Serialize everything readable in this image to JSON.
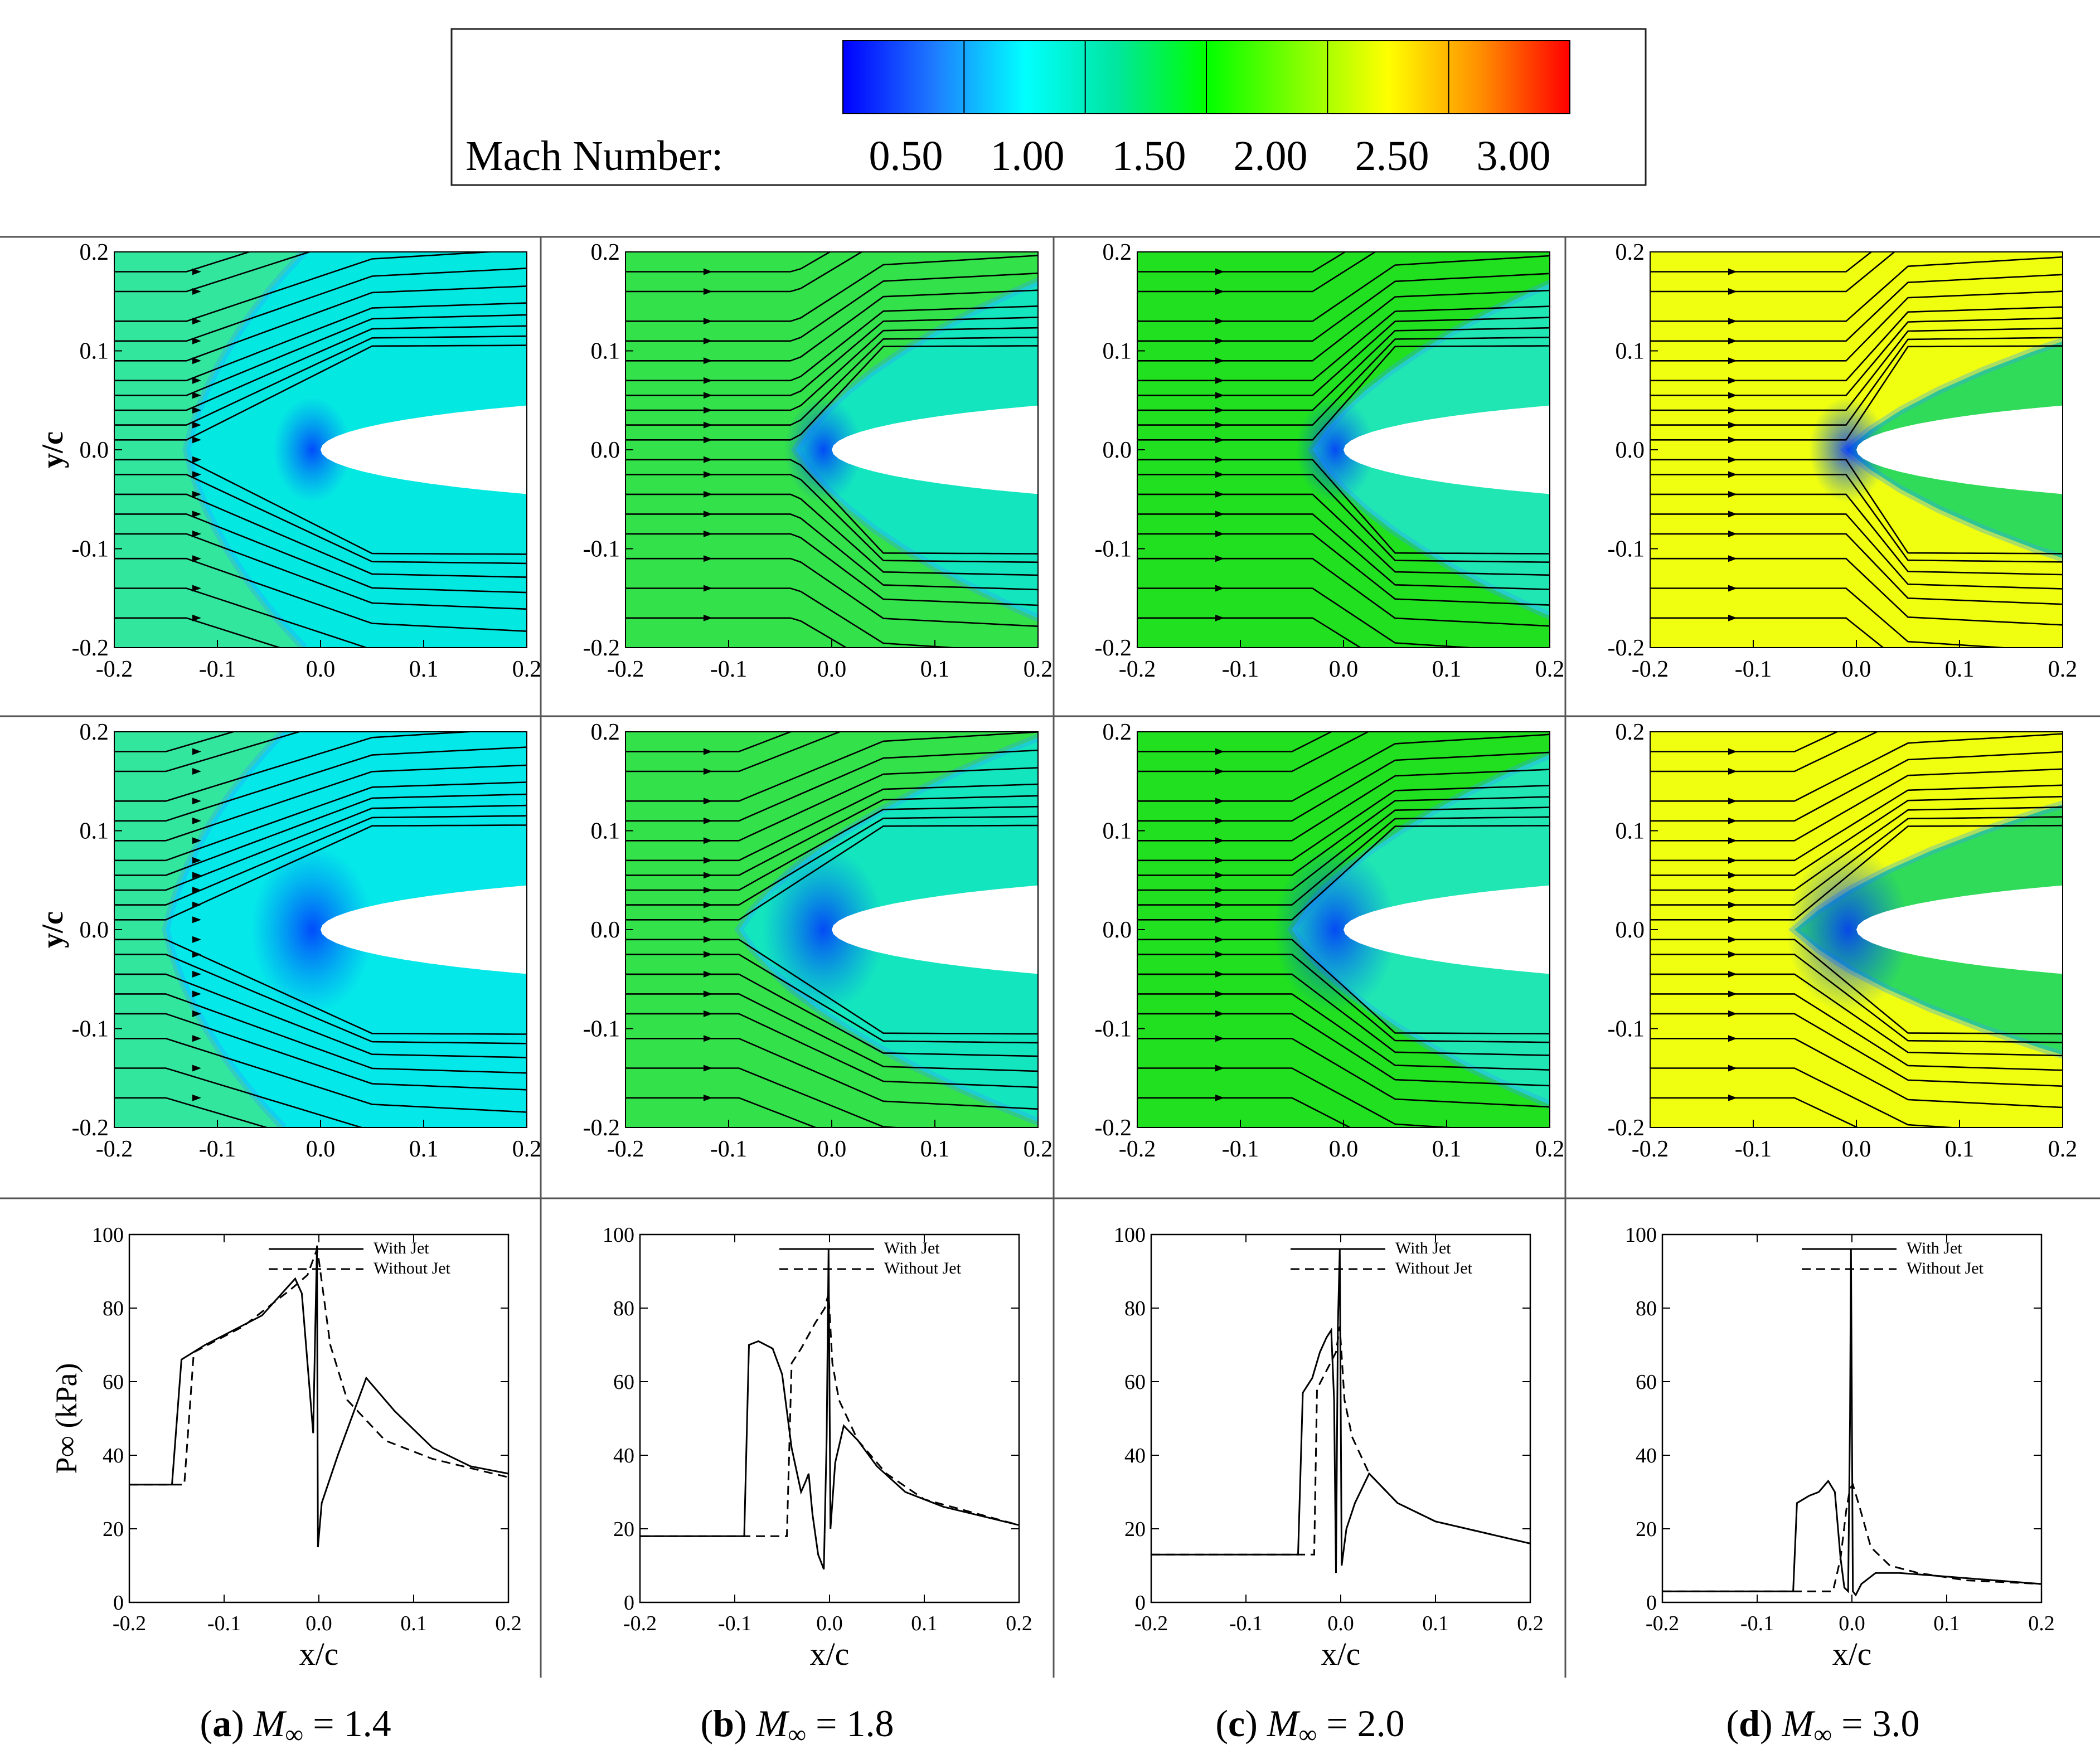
{
  "legend": {
    "label": "Mach Number:",
    "ticks": [
      "0.50",
      "1.00",
      "1.50",
      "2.00",
      "2.50",
      "3.00"
    ],
    "colors": [
      "#0000ff",
      "#1e7bff",
      "#00ffff",
      "#00e6a0",
      "#00ff00",
      "#80ff00",
      "#ffff00",
      "#ff9000",
      "#ff0000"
    ]
  },
  "columns": [
    {
      "letter": "a",
      "mach": "1.4",
      "freestream": "#33e69e",
      "bow_shock": 0.13,
      "wake": "#00e8e8",
      "jet_shock": 0.15,
      "jet_wake": "#00e8f0"
    },
    {
      "letter": "b",
      "mach": "1.8",
      "freestream": "#33e14a",
      "bow_shock": 0.035,
      "wake": "#10e6c8",
      "jet_shock": 0.09,
      "jet_wake": "#10e6c8"
    },
    {
      "letter": "c",
      "mach": "2.0",
      "freestream": "#20e020",
      "bow_shock": 0.03,
      "wake": "#20e6c0",
      "jet_shock": 0.05,
      "jet_wake": "#20e6c0"
    },
    {
      "letter": "d",
      "mach": "3.0",
      "freestream": "#f0ff10",
      "bow_shock": 0.01,
      "wake": "#20d860",
      "jet_shock": 0.06,
      "jet_wake": "#20d860"
    }
  ],
  "contour_axes": {
    "xlabel": "x/c",
    "ylabel": "y/c",
    "xticks": [
      "-0.2",
      "-0.1",
      "0.0",
      "0.1",
      "0.2"
    ],
    "yticks": [
      "0.2",
      "0.1",
      "0.0",
      "-0.1",
      "-0.2"
    ],
    "xlim": [
      -0.2,
      0.2
    ],
    "ylim": [
      -0.2,
      0.2
    ]
  },
  "caption_prefix": "M",
  "caption_sub": "∞",
  "caption_eq": " = ",
  "chart_data": [
    {
      "type": "line",
      "panel": "a",
      "title": "M∞ = 1.4",
      "xlabel": "x/c",
      "ylabel": "P∞ (kPa)",
      "xlim": [
        -0.2,
        0.2
      ],
      "ylim": [
        0,
        100
      ],
      "xticks": [
        "-0.2",
        "-0.1",
        "0.0",
        "0.1",
        "0.2"
      ],
      "yticks": [
        "0",
        "20",
        "40",
        "60",
        "80",
        "100"
      ],
      "legend": [
        "With Jet",
        "Without Jet"
      ],
      "series": [
        {
          "name": "With Jet",
          "style": "solid",
          "points": [
            [
              -0.2,
              32
            ],
            [
              -0.155,
              32
            ],
            [
              -0.145,
              66
            ],
            [
              -0.12,
              70
            ],
            [
              -0.06,
              78
            ],
            [
              -0.025,
              88
            ],
            [
              -0.018,
              84
            ],
            [
              -0.012,
              65
            ],
            [
              -0.006,
              46
            ],
            [
              -0.004,
              72
            ],
            [
              -0.002,
              97
            ],
            [
              -0.001,
              15
            ],
            [
              0.003,
              27
            ],
            [
              0.02,
              40
            ],
            [
              0.05,
              61
            ],
            [
              0.08,
              52
            ],
            [
              0.12,
              42
            ],
            [
              0.16,
              37
            ],
            [
              0.2,
              35
            ]
          ]
        },
        {
          "name": "Without Jet",
          "style": "dashed",
          "points": [
            [
              -0.2,
              32
            ],
            [
              -0.142,
              32
            ],
            [
              -0.132,
              68
            ],
            [
              -0.08,
              75
            ],
            [
              -0.03,
              85
            ],
            [
              -0.012,
              89
            ],
            [
              -0.002,
              96
            ],
            [
              0,
              93
            ],
            [
              0.012,
              70
            ],
            [
              0.03,
              55
            ],
            [
              0.07,
              44
            ],
            [
              0.12,
              39
            ],
            [
              0.2,
              34
            ]
          ]
        }
      ]
    },
    {
      "type": "line",
      "panel": "b",
      "title": "M∞ = 1.8",
      "xlabel": "x/c",
      "ylabel": "",
      "xlim": [
        -0.2,
        0.2
      ],
      "ylim": [
        0,
        100
      ],
      "xticks": [
        "-0.2",
        "-0.1",
        "0.0",
        "0.1",
        "0.2"
      ],
      "yticks": [
        "0",
        "20",
        "40",
        "60",
        "80",
        "100"
      ],
      "legend": [
        "With Jet",
        "Without Jet"
      ],
      "series": [
        {
          "name": "With Jet",
          "style": "solid",
          "points": [
            [
              -0.2,
              18
            ],
            [
              -0.09,
              18
            ],
            [
              -0.085,
              70
            ],
            [
              -0.075,
              71
            ],
            [
              -0.06,
              69
            ],
            [
              -0.05,
              62
            ],
            [
              -0.04,
              42
            ],
            [
              -0.03,
              30
            ],
            [
              -0.025,
              33
            ],
            [
              -0.022,
              35
            ],
            [
              -0.018,
              24
            ],
            [
              -0.012,
              13
            ],
            [
              -0.006,
              9
            ],
            [
              -0.003,
              45
            ],
            [
              -0.001,
              96
            ],
            [
              0.001,
              20
            ],
            [
              0.006,
              38
            ],
            [
              0.015,
              48
            ],
            [
              0.03,
              44
            ],
            [
              0.05,
              37
            ],
            [
              0.08,
              30
            ],
            [
              0.12,
              26
            ],
            [
              0.2,
              21
            ]
          ]
        },
        {
          "name": "Without Jet",
          "style": "dashed",
          "points": [
            [
              -0.2,
              18
            ],
            [
              -0.045,
              18
            ],
            [
              -0.04,
              65
            ],
            [
              -0.03,
              69
            ],
            [
              -0.015,
              76
            ],
            [
              -0.005,
              80
            ],
            [
              -0.001,
              84
            ],
            [
              0.003,
              65
            ],
            [
              0.01,
              55
            ],
            [
              0.03,
              44
            ],
            [
              0.06,
              35
            ],
            [
              0.1,
              28
            ],
            [
              0.2,
              21
            ]
          ]
        }
      ]
    },
    {
      "type": "line",
      "panel": "c",
      "title": "M∞ = 2.0",
      "xlabel": "x/c",
      "ylabel": "",
      "xlim": [
        -0.2,
        0.2
      ],
      "ylim": [
        0,
        100
      ],
      "xticks": [
        "-0.2",
        "-0.1",
        "0.0",
        "0.1",
        "0.2"
      ],
      "yticks": [
        "0",
        "20",
        "40",
        "60",
        "80",
        "100"
      ],
      "legend": [
        "With Jet",
        "Without Jet"
      ],
      "series": [
        {
          "name": "With Jet",
          "style": "solid",
          "points": [
            [
              -0.2,
              13
            ],
            [
              -0.045,
              13
            ],
            [
              -0.04,
              57
            ],
            [
              -0.03,
              61
            ],
            [
              -0.022,
              68
            ],
            [
              -0.015,
              72
            ],
            [
              -0.01,
              74
            ],
            [
              -0.007,
              55
            ],
            [
              -0.005,
              8
            ],
            [
              -0.003,
              75
            ],
            [
              -0.001,
              96
            ],
            [
              0.001,
              10
            ],
            [
              0.006,
              20
            ],
            [
              0.015,
              27
            ],
            [
              0.03,
              35
            ],
            [
              0.06,
              27
            ],
            [
              0.1,
              22
            ],
            [
              0.2,
              16
            ]
          ]
        },
        {
          "name": "Without Jet",
          "style": "dashed",
          "points": [
            [
              -0.2,
              13
            ],
            [
              -0.028,
              13
            ],
            [
              -0.025,
              58
            ],
            [
              -0.015,
              63
            ],
            [
              -0.005,
              68
            ],
            [
              -0.001,
              75
            ],
            [
              0.004,
              55
            ],
            [
              0.012,
              45
            ],
            [
              0.03,
              35
            ],
            [
              0.06,
              27
            ],
            [
              0.1,
              22
            ],
            [
              0.2,
              16
            ]
          ]
        }
      ]
    },
    {
      "type": "line",
      "panel": "d",
      "title": "M∞ = 3.0",
      "xlabel": "x/c",
      "ylabel": "",
      "xlim": [
        -0.2,
        0.2
      ],
      "ylim": [
        0,
        100
      ],
      "xticks": [
        "-0.2",
        "-0.1",
        "0.0",
        "0.1",
        "0.2"
      ],
      "yticks": [
        "0",
        "20",
        "40",
        "60",
        "80",
        "100"
      ],
      "legend": [
        "With Jet",
        "Without Jet"
      ],
      "series": [
        {
          "name": "With Jet",
          "style": "solid",
          "points": [
            [
              -0.2,
              3
            ],
            [
              -0.062,
              3
            ],
            [
              -0.058,
              27
            ],
            [
              -0.045,
              29
            ],
            [
              -0.035,
              30
            ],
            [
              -0.025,
              33
            ],
            [
              -0.018,
              30
            ],
            [
              -0.012,
              12
            ],
            [
              -0.008,
              4
            ],
            [
              -0.004,
              3
            ],
            [
              -0.002,
              50
            ],
            [
              -0.001,
              96
            ],
            [
              0.001,
              3
            ],
            [
              0.004,
              2
            ],
            [
              0.01,
              5
            ],
            [
              0.025,
              8
            ],
            [
              0.05,
              8
            ],
            [
              0.1,
              7
            ],
            [
              0.2,
              5
            ]
          ]
        },
        {
          "name": "Without Jet",
          "style": "dashed",
          "points": [
            [
              -0.2,
              3
            ],
            [
              -0.02,
              3
            ],
            [
              -0.012,
              12
            ],
            [
              -0.006,
              25
            ],
            [
              -0.002,
              31
            ],
            [
              0.001,
              32
            ],
            [
              0.008,
              26
            ],
            [
              0.02,
              15
            ],
            [
              0.04,
              10
            ],
            [
              0.07,
              8
            ],
            [
              0.12,
              6
            ],
            [
              0.2,
              5
            ]
          ]
        }
      ]
    }
  ]
}
